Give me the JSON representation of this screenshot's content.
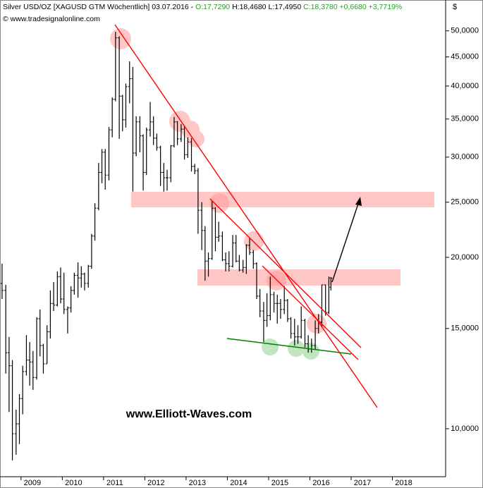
{
  "chart_data": {
    "type": "ohlc",
    "title": "Silver USD/OZ [XAGUSD GTM  Wöchentlich] 03.07.2016 -",
    "open_label": "O:17,7290",
    "high_label": "H:18,4680",
    "low_label": "L:17,4950",
    "close_label": "C:18,3780",
    "change_label": "+0,6680",
    "change_pct_label": "+3,7719%",
    "source": "© www.tradesignalonline.com",
    "currency": "$",
    "watermark": "www.Elliott-Waves.com",
    "log_scale": true,
    "color": "#000000",
    "xlim": [
      2008.49,
      2019.29
    ],
    "xticks": [
      2009,
      2010,
      2011,
      2012,
      2013,
      2014,
      2015,
      2016,
      2017,
      2018
    ],
    "ylim": [
      8.33,
      52
    ],
    "yticks": [
      {
        "value": 10,
        "label": "10,0000"
      },
      {
        "value": 15,
        "label": "15,0000"
      },
      {
        "value": 20,
        "label": "20,0000"
      },
      {
        "value": 25,
        "label": "25,0000"
      },
      {
        "value": 30,
        "label": "30,0000"
      },
      {
        "value": 35,
        "label": "35,0000"
      },
      {
        "value": 40,
        "label": "40,0000"
      },
      {
        "value": 45,
        "label": "45,0000"
      },
      {
        "value": 50,
        "label": "50,0000"
      }
    ],
    "x": [
      2008.54,
      2008.63,
      2008.71,
      2008.79,
      2008.88,
      2008.96,
      2009.04,
      2009.13,
      2009.21,
      2009.29,
      2009.38,
      2009.46,
      2009.54,
      2009.63,
      2009.71,
      2009.79,
      2009.88,
      2009.96,
      2010.04,
      2010.13,
      2010.21,
      2010.29,
      2010.38,
      2010.46,
      2010.54,
      2010.63,
      2010.71,
      2010.79,
      2010.88,
      2010.96,
      2011.04,
      2011.13,
      2011.21,
      2011.29,
      2011.38,
      2011.46,
      2011.54,
      2011.63,
      2011.71,
      2011.79,
      2011.88,
      2011.96,
      2012.04,
      2012.13,
      2012.21,
      2012.29,
      2012.38,
      2012.46,
      2012.54,
      2012.63,
      2012.71,
      2012.79,
      2012.88,
      2012.96,
      2013.04,
      2013.13,
      2013.21,
      2013.29,
      2013.38,
      2013.46,
      2013.54,
      2013.63,
      2013.71,
      2013.79,
      2013.88,
      2013.96,
      2014.04,
      2014.13,
      2014.21,
      2014.29,
      2014.38,
      2014.46,
      2014.54,
      2014.63,
      2014.71,
      2014.79,
      2014.88,
      2014.96,
      2015.04,
      2015.13,
      2015.21,
      2015.29,
      2015.38,
      2015.46,
      2015.54,
      2015.63,
      2015.71,
      2015.79,
      2015.88,
      2015.96,
      2016.04,
      2016.13,
      2016.21,
      2016.29,
      2016.38,
      2016.46,
      2016.51
    ],
    "open": [
      18.0,
      17.5,
      13.6,
      12.9,
      9.8,
      10.2,
      11.3,
      12.6,
      13.2,
      13.1,
      12.3,
      15.6,
      14.0,
      13.0,
      14.8,
      16.6,
      16.5,
      18.5,
      16.9,
      16.2,
      16.3,
      17.5,
      18.6,
      18.4,
      18.7,
      18.0,
      19.3,
      21.8,
      24.4,
      28.2,
      30.6,
      27.9,
      33.5,
      37.9,
      48.6,
      38.4,
      34.9,
      39.9,
      41.2,
      30.5,
      34.6,
      32.7,
      28.2,
      33.5,
      34.6,
      32.4,
      31.2,
      28.2,
      27.6,
      27.6,
      31.4,
      34.6,
      32.3,
      33.6,
      30.3,
      31.9,
      28.9,
      28.4,
      24.2,
      22.3,
      19.7,
      19.9,
      24.4,
      21.7,
      21.8,
      19.8,
      19.5,
      19.3,
      21.2,
      19.7,
      19.0,
      19.2,
      21.0,
      20.4,
      19.5,
      17.1,
      16.1,
      15.5,
      15.8,
      17.2,
      16.6,
      16.6,
      16.2,
      16.8,
      15.6,
      14.7,
      14.5,
      14.5,
      15.5,
      14.1,
      13.8,
      14.0,
      15.0,
      15.4,
      17.9,
      16.0,
      17.729
    ],
    "high": [
      19.5,
      17.9,
      14.5,
      13.2,
      10.8,
      11.5,
      12.9,
      14.6,
      14.2,
      13.7,
      15.7,
      16.2,
      14.1,
      15.2,
      17.5,
      18.1,
      18.9,
      19.2,
      18.8,
      16.4,
      17.8,
      18.8,
      19.6,
      19.3,
      18.8,
      19.4,
      22.0,
      24.9,
      29.3,
      31.0,
      31.0,
      33.9,
      38.2,
      49.8,
      48.9,
      38.6,
      40.4,
      44.2,
      43.2,
      35.4,
      35.4,
      32.9,
      33.8,
      37.5,
      35.4,
      33.0,
      31.4,
      29.3,
      28.5,
      31.5,
      35.3,
      34.7,
      34.3,
      34.1,
      32.5,
      32.4,
      29.2,
      28.7,
      25.0,
      22.7,
      20.4,
      25.1,
      24.5,
      23.1,
      22.2,
      20.4,
      20.5,
      21.9,
      21.9,
      20.2,
      19.8,
      21.1,
      21.6,
      20.6,
      19.6,
      17.6,
      16.7,
      17.3,
      18.5,
      17.4,
      17.2,
      16.9,
      17.8,
      16.9,
      15.7,
      15.6,
      15.2,
      16.4,
      15.6,
      14.6,
      14.4,
      15.5,
      15.9,
      17.9,
      17.9,
      18.5,
      18.468
    ],
    "low": [
      16.9,
      12.5,
      10.7,
      8.8,
      9.0,
      9.4,
      10.6,
      12.4,
      11.9,
      11.7,
      12.2,
      13.4,
      12.5,
      13.0,
      14.4,
      16.1,
      16.4,
      16.6,
      15.9,
      14.7,
      16.0,
      17.2,
      17.0,
      17.7,
      17.5,
      17.7,
      19.1,
      21.4,
      24.2,
      27.0,
      26.3,
      27.3,
      32.5,
      37.6,
      32.3,
      33.3,
      33.8,
      37.3,
      26.1,
      30.1,
      30.6,
      26.2,
      27.9,
      32.6,
      31.5,
      30.8,
      26.7,
      26.1,
      26.2,
      27.1,
      31.2,
      31.5,
      31.9,
      29.7,
      29.9,
      28.3,
      28.0,
      22.0,
      20.6,
      18.2,
      18.5,
      19.8,
      20.5,
      21.3,
      19.7,
      18.9,
      18.9,
      19.2,
      19.6,
      18.9,
      18.8,
      18.7,
      20.2,
      19.1,
      16.9,
      15.7,
      14.2,
      15.1,
      15.5,
      16.0,
      15.3,
      15.6,
      15.9,
      15.4,
      14.4,
      14.0,
      14.1,
      14.4,
      13.9,
      13.6,
      13.6,
      13.8,
      14.7,
      15.1,
      15.8,
      15.9,
      17.495
    ],
    "close": [
      17.5,
      13.6,
      12.9,
      9.8,
      10.2,
      11.3,
      12.6,
      13.2,
      13.1,
      12.3,
      15.6,
      14.0,
      13.0,
      14.8,
      16.6,
      16.5,
      18.5,
      16.9,
      16.2,
      16.3,
      17.5,
      18.6,
      18.4,
      18.7,
      18.0,
      19.3,
      21.8,
      24.4,
      28.2,
      30.6,
      27.9,
      33.5,
      37.9,
      48.6,
      38.4,
      34.9,
      39.9,
      41.2,
      30.5,
      34.6,
      32.7,
      28.2,
      33.5,
      34.6,
      32.4,
      31.2,
      28.2,
      27.6,
      27.6,
      31.4,
      34.6,
      32.3,
      33.6,
      30.3,
      31.9,
      28.9,
      28.4,
      24.2,
      22.3,
      19.7,
      19.9,
      24.4,
      21.7,
      21.8,
      19.8,
      19.5,
      19.3,
      21.2,
      19.7,
      19.0,
      19.2,
      21.0,
      20.4,
      19.5,
      17.1,
      16.1,
      15.5,
      15.8,
      17.2,
      16.6,
      16.6,
      16.2,
      16.8,
      15.6,
      14.7,
      14.5,
      14.5,
      15.5,
      14.1,
      13.8,
      14.0,
      15.0,
      15.4,
      17.9,
      16.0,
      18.4,
      18.378
    ]
  }
}
